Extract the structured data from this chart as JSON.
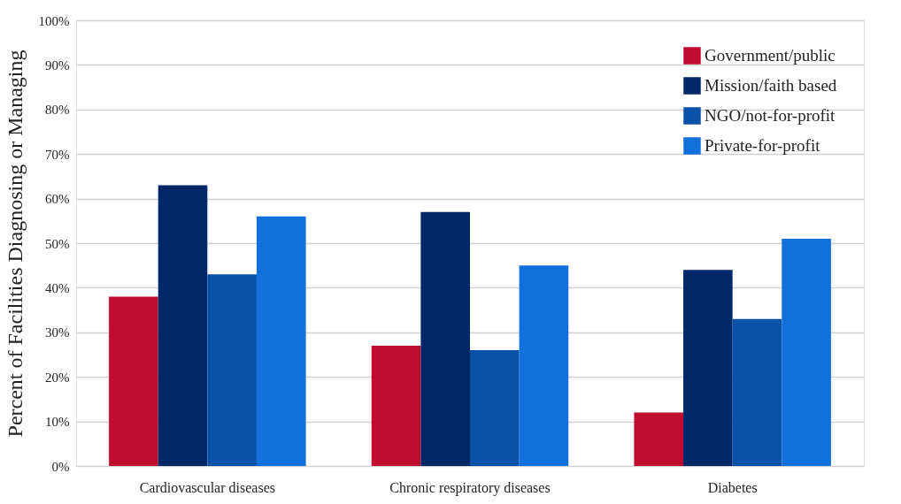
{
  "chart_data": {
    "type": "bar",
    "ylabel": "Percent of Facilities Diagnosing or Managing",
    "categories": [
      "Cardiovascular diseases",
      "Chronic respiratory diseases",
      "Diabetes"
    ],
    "series": [
      {
        "name": "Government/public",
        "color": "#c00c2f",
        "values": [
          38,
          27,
          12
        ]
      },
      {
        "name": "Mission/faith based",
        "color": "#002868",
        "values": [
          63,
          57,
          44
        ]
      },
      {
        "name": "NGO/not-for-profit",
        "color": "#0a52a8",
        "values": [
          43,
          26,
          33
        ]
      },
      {
        "name": "Private-for-profit",
        "color": "#1170dc",
        "values": [
          56,
          45,
          51
        ]
      }
    ],
    "ylim": [
      0,
      100
    ],
    "yticks": [
      {
        "value": 0,
        "label": "0%"
      },
      {
        "value": 10,
        "label": "10%"
      },
      {
        "value": 20,
        "label": "20%"
      },
      {
        "value": 30,
        "label": "30%"
      },
      {
        "value": 40,
        "label": "40%"
      },
      {
        "value": 50,
        "label": "50%"
      },
      {
        "value": 60,
        "label": "60%"
      },
      {
        "value": 70,
        "label": "70%"
      },
      {
        "value": 80,
        "label": "80%"
      },
      {
        "value": 90,
        "label": "90%"
      },
      {
        "value": 100,
        "label": "100%"
      }
    ],
    "grid": "y",
    "legend": "top right"
  }
}
